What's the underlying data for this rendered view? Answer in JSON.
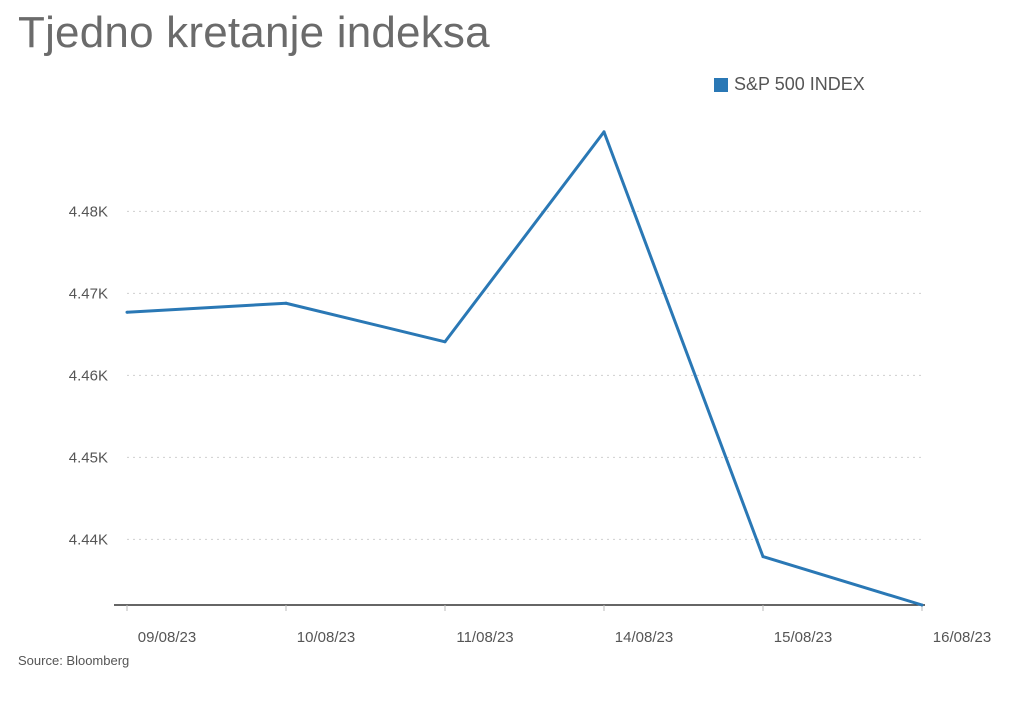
{
  "chart_data": {
    "type": "line",
    "title": "Tjedno kretanje indeksa",
    "categories": [
      "09/08/23",
      "10/08/23",
      "11/08/23",
      "14/08/23",
      "15/08/23",
      "16/08/23"
    ],
    "series": [
      {
        "name": "S&P 500 INDEX",
        "color": "#2a78b5",
        "values": [
          4467.7,
          4468.8,
          4464.1,
          4489.7,
          4437.9,
          4432.0
        ]
      }
    ],
    "y_ticks": [
      {
        "value": 4440,
        "label": "4.44K"
      },
      {
        "value": 4450,
        "label": "4.45K"
      },
      {
        "value": 4460,
        "label": "4.46K"
      },
      {
        "value": 4470,
        "label": "4.47K"
      },
      {
        "value": 4480,
        "label": "4.48K"
      }
    ],
    "ylim": [
      4432,
      4492
    ],
    "grid": true,
    "legend_position": "top-right",
    "source": "Source: Bloomberg"
  }
}
